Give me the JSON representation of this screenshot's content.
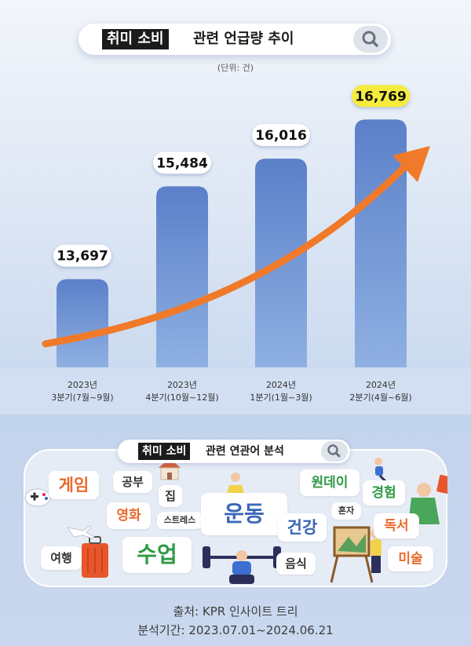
{
  "title": {
    "highlight": "취미 소비",
    "rest": "관련 언급량 추이",
    "search_icon": "search-icon"
  },
  "unit_label": "(단위: 건)",
  "chart_data": {
    "type": "bar",
    "title": "취미 소비 관련 언급량 추이",
    "unit": "(단위: 건)",
    "categories": [
      [
        "2023년",
        "3분기(7월~9월)"
      ],
      [
        "2023년",
        "4분기(10월~12월)"
      ],
      [
        "2024년",
        "1분기(1월~3월)"
      ],
      [
        "2024년",
        "2분기(4월~6월)"
      ]
    ],
    "values": [
      13697,
      15484,
      16016,
      16769
    ],
    "value_labels": [
      "13,697",
      "15,484",
      "16,016",
      "16,769"
    ],
    "highlight_index": 3,
    "trend_arrow": true,
    "colors": {
      "bar_top": "#5b80c9",
      "bar_bottom": "#8fb0e2",
      "arrow": "#f07a2a",
      "highlight_label": "#f6ec3d"
    }
  },
  "related": {
    "title_highlight": "취미 소비",
    "title_rest": "관련 연관어 분석",
    "keywords": [
      {
        "text": "게임",
        "color": "#ea6a2c",
        "size": "l"
      },
      {
        "text": "공부",
        "color": "#333333",
        "size": "s"
      },
      {
        "text": "집",
        "color": "#333333",
        "size": "s"
      },
      {
        "text": "영화",
        "color": "#ea6a2c",
        "size": "m"
      },
      {
        "text": "스트레스",
        "color": "#333333",
        "size": "xs"
      },
      {
        "text": "운동",
        "color": "#3b67b8",
        "size": "xl"
      },
      {
        "text": "원데이",
        "color": "#2f9a44",
        "size": "m"
      },
      {
        "text": "혼자",
        "color": "#333333",
        "size": "xs"
      },
      {
        "text": "경험",
        "color": "#2f9a44",
        "size": "m"
      },
      {
        "text": "건강",
        "color": "#3b67b8",
        "size": "l"
      },
      {
        "text": "독서",
        "color": "#ea6a2c",
        "size": "m"
      },
      {
        "text": "여행",
        "color": "#333333",
        "size": "s"
      },
      {
        "text": "수업",
        "color": "#2f9a44",
        "size": "xl"
      },
      {
        "text": "음식",
        "color": "#333333",
        "size": "s"
      },
      {
        "text": "미술",
        "color": "#ea6a2c",
        "size": "m"
      }
    ]
  },
  "footer": {
    "source": "출처: KPR 인사이트 트리",
    "period": "분석기간: 2023.07.01~2024.06.21"
  }
}
